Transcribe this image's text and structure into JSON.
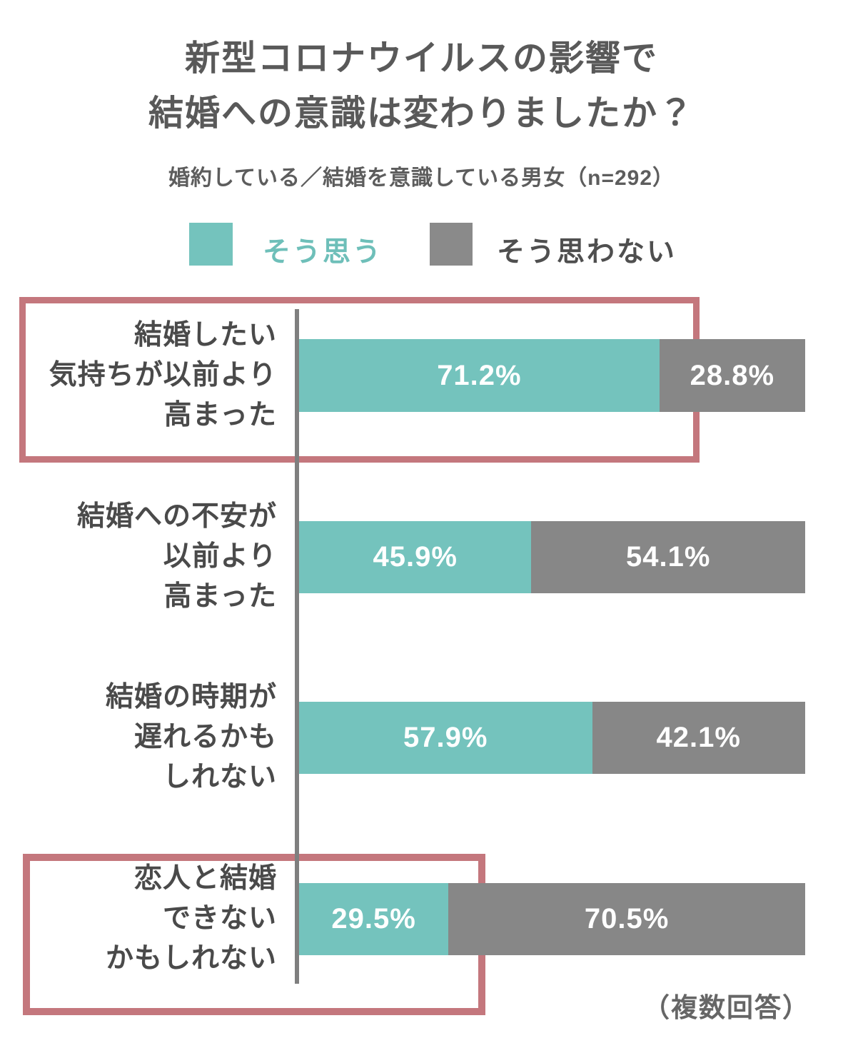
{
  "title": {
    "line1": "新型コロナウイルスの影響で",
    "line2": "結婚への意識は変わりましたか？"
  },
  "subtitle": "婚約している／結婚を意識している男女（n=292）",
  "legend": {
    "agree": {
      "label": "そう思う",
      "swatch_color": "#74c3bd",
      "text_color": "#6ebfb9"
    },
    "disagree": {
      "label": "そう思わない",
      "swatch_color": "#8a8a8a",
      "text_color": "#4f4f4f"
    }
  },
  "footnote": "（複数回答）",
  "colors": {
    "agree_bar": "#74c3bd",
    "disagree_bar": "#878787",
    "axis": "#7f7f7f",
    "highlight_box": "#c4777d",
    "title_text": "#595959",
    "category_text": "#4a4a4a",
    "value_text": "#ffffff",
    "background": "#ffffff"
  },
  "chart_data": {
    "type": "bar",
    "orientation": "horizontal_stacked",
    "unit": "%",
    "xlim": [
      0,
      100
    ],
    "grid": false,
    "legend_position": "top",
    "categories": [
      {
        "lines": [
          "結婚したい",
          "気持ちが以前より",
          "高まった"
        ]
      },
      {
        "lines": [
          "結婚への不安が",
          "以前より",
          "高まった"
        ]
      },
      {
        "lines": [
          "結婚の時期が",
          "遅れるかも",
          "しれない"
        ]
      },
      {
        "lines": [
          "恋人と結婚",
          "できない",
          "かもしれない"
        ]
      }
    ],
    "series": [
      {
        "name": "そう思う",
        "values": [
          71.2,
          45.9,
          57.9,
          29.5
        ],
        "labels": [
          "71.2%",
          "45.9%",
          "57.9%",
          "29.5%"
        ]
      },
      {
        "name": "そう思わない",
        "values": [
          28.8,
          54.1,
          42.1,
          70.5
        ],
        "labels": [
          "28.8%",
          "54.1%",
          "42.1%",
          "70.5%"
        ]
      }
    ],
    "highlighted_rows": [
      0,
      3
    ]
  }
}
